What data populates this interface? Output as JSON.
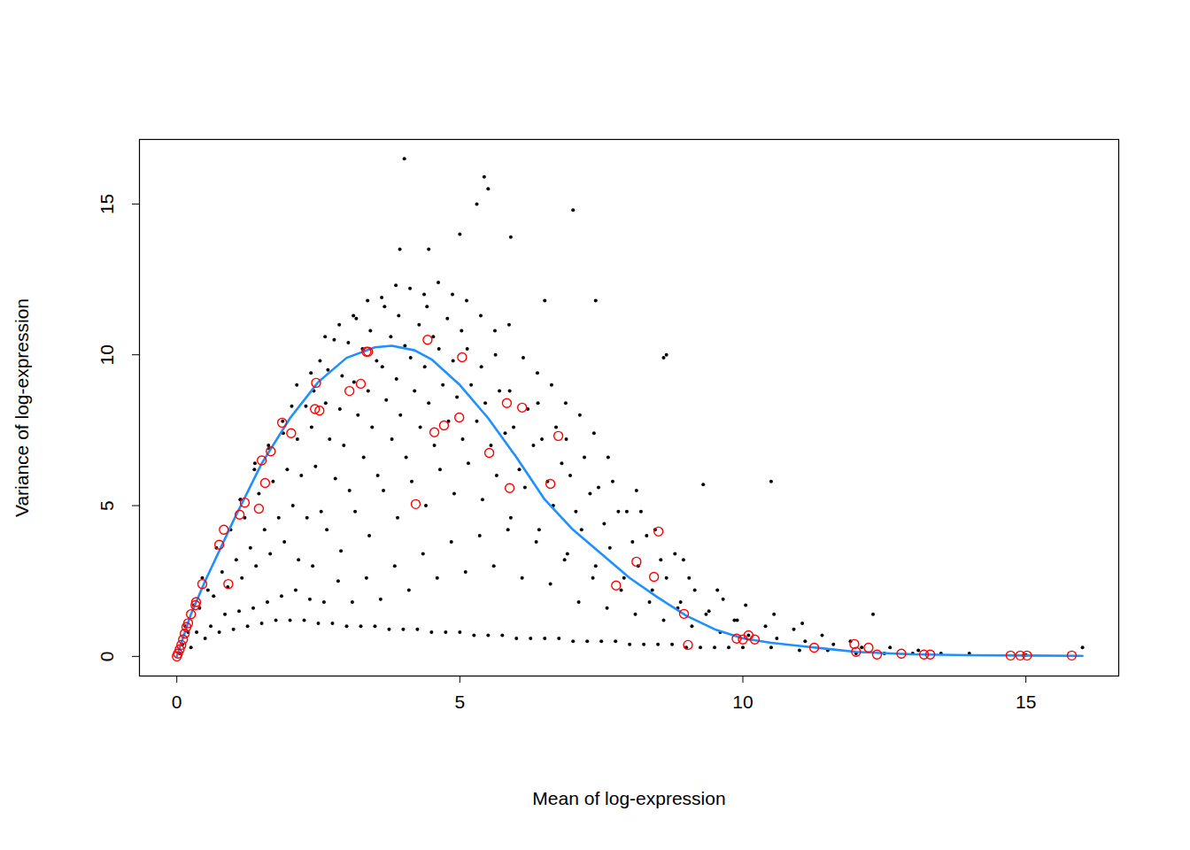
{
  "chart_data": {
    "type": "scatter",
    "x_label": "Mean of log-expression",
    "y_label": "Variance of log-expression",
    "xlim": [
      -0.66,
      16.64
    ],
    "ylim": [
      -0.65,
      17.14
    ],
    "xticks": [
      0,
      5,
      10,
      15
    ],
    "yticks": [
      0,
      5,
      10,
      15
    ],
    "grid": false,
    "series": [
      {
        "color": "#000000",
        "marker": "dot",
        "x": [
          0.05,
          0.1,
          0.2,
          0.25,
          0.35,
          0.15,
          0.3,
          0.5,
          0.6,
          0.4,
          0.55,
          0.45,
          0.75,
          0.85,
          0.65,
          0.8,
          0.7,
          1.0,
          1.1,
          0.9,
          1.05,
          0.95,
          1.12,
          1.25,
          1.35,
          1.15,
          1.3,
          1.2,
          1.37,
          1.13,
          1.5,
          1.6,
          1.4,
          1.55,
          1.45,
          1.62,
          1.38,
          1.75,
          1.85,
          1.65,
          1.8,
          1.7,
          1.87,
          1.63,
          2.0,
          2.1,
          1.9,
          2.05,
          1.95,
          2.12,
          1.88,
          2.03,
          2.25,
          2.35,
          2.15,
          2.3,
          2.2,
          2.37,
          2.13,
          2.28,
          2.5,
          2.6,
          2.4,
          2.55,
          2.45,
          2.62,
          2.38,
          2.53,
          2.42,
          2.75,
          2.85,
          2.65,
          2.8,
          2.7,
          2.87,
          2.63,
          2.78,
          2.67,
          3.0,
          3.1,
          2.9,
          3.05,
          2.95,
          3.12,
          2.88,
          3.03,
          2.92,
          3.25,
          3.35,
          3.15,
          3.3,
          3.2,
          3.37,
          3.13,
          3.28,
          3.17,
          3.5,
          3.6,
          3.4,
          3.55,
          3.45,
          3.62,
          3.38,
          3.53,
          3.42,
          3.75,
          3.85,
          3.65,
          3.8,
          3.7,
          3.87,
          3.63,
          3.78,
          3.67,
          4.0,
          4.1,
          3.9,
          4.05,
          3.95,
          4.12,
          3.88,
          4.03,
          3.92,
          4.25,
          4.35,
          4.15,
          4.3,
          4.2,
          4.37,
          4.13,
          4.28,
          4.5,
          4.6,
          4.4,
          4.55,
          4.45,
          4.62,
          4.38,
          4.53,
          4.42,
          4.75,
          4.85,
          4.65,
          4.8,
          4.7,
          4.87,
          4.63,
          4.78,
          5.0,
          5.1,
          4.9,
          5.05,
          4.95,
          5.12,
          4.88,
          5.03,
          5.25,
          5.35,
          5.15,
          5.3,
          5.2,
          5.37,
          5.13,
          5.5,
          5.6,
          5.4,
          5.55,
          5.45,
          5.62,
          5.38,
          5.75,
          5.85,
          5.65,
          5.8,
          5.7,
          5.87,
          5.63,
          6.0,
          6.1,
          5.9,
          6.05,
          5.95,
          6.12,
          5.88,
          6.25,
          6.35,
          6.15,
          6.3,
          6.2,
          6.37,
          6.5,
          6.6,
          6.4,
          6.55,
          6.45,
          6.62,
          6.38,
          6.75,
          6.85,
          6.65,
          6.8,
          6.7,
          6.87,
          7.0,
          7.1,
          6.9,
          7.05,
          6.95,
          7.12,
          6.88,
          7.25,
          7.35,
          7.15,
          7.3,
          7.2,
          7.37,
          7.5,
          7.6,
          7.4,
          7.55,
          7.45,
          7.62,
          7.75,
          7.85,
          7.65,
          7.8,
          7.7,
          8.0,
          8.1,
          7.9,
          8.05,
          7.95,
          8.12,
          8.25,
          8.35,
          8.15,
          8.3,
          8.2,
          8.5,
          8.6,
          8.4,
          8.55,
          8.45,
          8.75,
          8.85,
          8.65,
          8.8,
          9.0,
          9.1,
          8.9,
          9.05,
          8.95,
          9.25,
          9.35,
          9.15,
          9.5,
          9.6,
          9.4,
          9.55,
          9.75,
          9.85,
          9.65,
          10.0,
          10.1,
          9.9,
          10.05,
          10.5,
          10.6,
          10.4,
          10.55,
          11.0,
          11.1,
          10.9,
          11.05,
          11.5,
          11.6,
          11.4,
          12.0,
          12.1,
          11.9,
          12.5,
          12.6,
          13.0,
          13.1,
          13.5,
          14.0,
          15.0,
          16.0,
          4.02,
          5.43,
          5.5,
          5.3,
          7.0,
          5.0,
          5.9,
          3.94,
          4.45,
          6.5,
          7.4,
          8.6,
          8.65,
          10.5,
          9.3,
          12.3
        ],
        "values": [
          0.1,
          0.4,
          0.8,
          0.3,
          0.8,
          1.0,
          1.7,
          0.6,
          1.0,
          1.6,
          2.2,
          2.6,
          0.8,
          1.4,
          2.0,
          2.8,
          3.6,
          0.9,
          1.5,
          2.3,
          3.2,
          4.2,
          5.2,
          1.0,
          1.6,
          2.6,
          3.6,
          4.6,
          6.2,
          5.2,
          1.1,
          1.8,
          3.0,
          4.2,
          5.4,
          7.0,
          6.4,
          1.2,
          2.0,
          3.4,
          4.6,
          5.8,
          7.8,
          6.9,
          1.2,
          2.2,
          3.8,
          5.0,
          6.2,
          9.0,
          7.4,
          8.3,
          1.2,
          1.9,
          3.2,
          4.6,
          6.0,
          9.4,
          7.2,
          8.3,
          1.1,
          1.8,
          3.0,
          4.8,
          6.3,
          10.6,
          7.6,
          9.8,
          8.8,
          1.1,
          2.5,
          4.2,
          5.9,
          7.2,
          11.0,
          8.4,
          10.5,
          9.5,
          1.0,
          1.8,
          3.5,
          5.5,
          7.0,
          11.3,
          8.2,
          10.4,
          9.3,
          1.0,
          2.6,
          4.8,
          6.6,
          8.0,
          11.8,
          9.1,
          10.2,
          11.2,
          1.0,
          1.9,
          4.0,
          6.0,
          7.6,
          11.9,
          8.8,
          9.8,
          10.8,
          0.9,
          3.0,
          5.5,
          7.2,
          8.5,
          12.3,
          9.6,
          10.6,
          11.6,
          0.9,
          2.2,
          4.6,
          6.6,
          8.0,
          12.2,
          9.2,
          10.3,
          11.3,
          0.9,
          3.4,
          5.8,
          7.6,
          8.8,
          12.0,
          9.9,
          11.0,
          0.8,
          2.6,
          5.0,
          7.0,
          8.4,
          12.4,
          9.6,
          10.6,
          11.6,
          0.8,
          3.8,
          6.2,
          7.8,
          9.0,
          12.0,
          10.2,
          11.2,
          0.8,
          2.8,
          5.4,
          7.2,
          8.6,
          11.8,
          9.8,
          10.8,
          0.7,
          4.0,
          6.4,
          7.8,
          9.0,
          11.3,
          10.2,
          0.7,
          3.0,
          5.2,
          7.0,
          8.4,
          10.8,
          9.6,
          0.7,
          4.2,
          6.0,
          7.4,
          8.8,
          11.0,
          10.0,
          0.6,
          2.6,
          4.6,
          6.2,
          7.6,
          9.9,
          8.8,
          0.6,
          3.8,
          5.6,
          7.0,
          8.2,
          9.4,
          0.6,
          2.4,
          4.2,
          5.8,
          7.2,
          9.0,
          8.4,
          0.6,
          3.2,
          5.0,
          6.4,
          7.6,
          8.4,
          0.5,
          1.8,
          3.4,
          4.8,
          6.0,
          8.0,
          7.2,
          0.5,
          2.6,
          4.2,
          5.4,
          6.6,
          7.4,
          0.5,
          1.6,
          3.0,
          4.4,
          5.6,
          6.6,
          0.5,
          2.2,
          3.6,
          4.8,
          5.8,
          0.4,
          1.4,
          2.6,
          3.8,
          4.8,
          5.5,
          0.4,
          1.8,
          3.0,
          4.0,
          4.8,
          0.4,
          1.2,
          2.2,
          3.2,
          4.2,
          0.4,
          1.6,
          2.6,
          3.4,
          0.3,
          1.0,
          1.8,
          2.6,
          3.2,
          0.3,
          1.4,
          2.2,
          0.3,
          0.8,
          1.5,
          2.2,
          0.3,
          1.2,
          1.9,
          0.3,
          0.7,
          1.2,
          1.7,
          0.3,
          0.6,
          1.0,
          1.4,
          0.2,
          0.5,
          0.9,
          1.1,
          0.2,
          0.4,
          0.7,
          0.1,
          0.3,
          0.5,
          0.1,
          0.3,
          0.1,
          0.2,
          0.1,
          0.1,
          0.05,
          0.3,
          16.5,
          15.9,
          15.5,
          15.0,
          14.8,
          14.0,
          13.9,
          13.5,
          13.5,
          11.8,
          11.8,
          9.9,
          10.0,
          5.8,
          5.7,
          1.4
        ]
      },
      {
        "color": "#1e90ff",
        "type": "line",
        "x": [
          0,
          0.25,
          0.5,
          1,
          1.5,
          2,
          2.5,
          3,
          3.5,
          3.8,
          4.2,
          4.5,
          5,
          5.5,
          6,
          6.5,
          7,
          7.5,
          8,
          8.5,
          9,
          9.5,
          10,
          10.5,
          11,
          11.5,
          12,
          13,
          14,
          15,
          16
        ],
        "values": [
          0,
          1.4,
          2.5,
          4.5,
          6.4,
          7.9,
          9.1,
          9.9,
          10.25,
          10.3,
          10.15,
          9.85,
          9.0,
          7.9,
          6.6,
          5.2,
          4.2,
          3.4,
          2.6,
          1.95,
          1.35,
          0.9,
          0.6,
          0.45,
          0.35,
          0.25,
          0.15,
          0.07,
          0.04,
          0.03,
          0.02
        ]
      },
      {
        "color": "#ff0000",
        "marker": "circle",
        "x": [
          0,
          0.02,
          0.05,
          0.08,
          0.11,
          0.14,
          0.17,
          0.2,
          0.25,
          0.33,
          0.34,
          0.45,
          0.75,
          0.83,
          0.91,
          1.11,
          1.2,
          1.45,
          1.5,
          1.56,
          1.66,
          1.86,
          2.02,
          2.46,
          2.44,
          2.52,
          3.05,
          3.25,
          3.35,
          3.38,
          4.22,
          4.43,
          4.55,
          4.72,
          5.04,
          4.99,
          5.52,
          5.83,
          5.88,
          6.1,
          6.6,
          6.74,
          7.76,
          8.12,
          8.43,
          8.51,
          8.96,
          9.03,
          9.89,
          10.0,
          10.1,
          10.21,
          11.26,
          11.97,
          12.0,
          12.22,
          12.37,
          12.8,
          13.2,
          13.31,
          14.73,
          14.9,
          15.02,
          15.81
        ],
        "values": [
          0,
          0.09,
          0.23,
          0.38,
          0.56,
          0.76,
          0.97,
          1.1,
          1.4,
          1.7,
          1.8,
          2.4,
          3.7,
          4.2,
          2.4,
          4.7,
          5.1,
          4.9,
          6.5,
          5.75,
          6.8,
          7.75,
          7.4,
          9.07,
          8.2,
          8.15,
          8.8,
          9.04,
          10.1,
          10.1,
          5.05,
          10.5,
          7.43,
          7.66,
          9.92,
          7.92,
          6.75,
          8.4,
          5.58,
          8.25,
          5.72,
          7.31,
          2.35,
          3.14,
          2.64,
          4.14,
          1.41,
          0.38,
          0.59,
          0.56,
          0.7,
          0.56,
          0.29,
          0.41,
          0.15,
          0.29,
          0.06,
          0.09,
          0.06,
          0.06,
          0.03,
          0.03,
          0.03,
          0.03
        ]
      }
    ]
  }
}
